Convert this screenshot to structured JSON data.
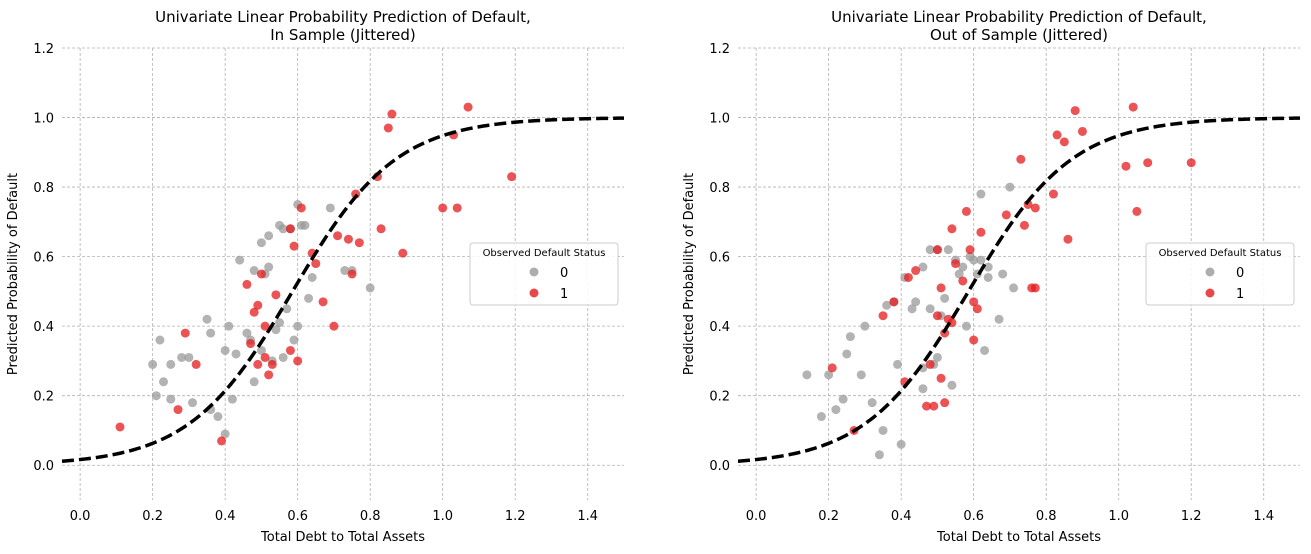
{
  "colors": {
    "class0": "#999999",
    "class1": "#e41a1c",
    "curve": "#000000"
  },
  "chart_data": [
    {
      "type": "scatter",
      "title": "Univariate Linear Probability Prediction of Default,\nIn Sample (Jittered)",
      "xlabel": "Total Debt to Total Assets",
      "ylabel": "Predicted Probability of Default",
      "xlim": [
        -0.05,
        1.5
      ],
      "ylim": [
        -0.1,
        1.2
      ],
      "xticks": [
        "0.0",
        "0.2",
        "0.4",
        "0.6",
        "0.8",
        "1.0",
        "1.2",
        "1.4"
      ],
      "yticks": [
        "0.0",
        "0.2",
        "0.4",
        "0.6",
        "0.8",
        "1.0",
        "1.2"
      ],
      "grid": true,
      "legend": {
        "title": "Observed Default Status",
        "position": "center-right",
        "entries": [
          "0",
          "1"
        ]
      },
      "curve": {
        "type": "logistic",
        "description": "dashed fitted probability curve"
      },
      "series": [
        {
          "name": "0",
          "points": [
            [
              0.2,
              0.29
            ],
            [
              0.21,
              0.2
            ],
            [
              0.22,
              0.36
            ],
            [
              0.23,
              0.24
            ],
            [
              0.25,
              0.29
            ],
            [
              0.25,
              0.19
            ],
            [
              0.28,
              0.31
            ],
            [
              0.3,
              0.31
            ],
            [
              0.31,
              0.18
            ],
            [
              0.35,
              0.42
            ],
            [
              0.36,
              0.38
            ],
            [
              0.36,
              0.16
            ],
            [
              0.38,
              0.14
            ],
            [
              0.4,
              0.33
            ],
            [
              0.41,
              0.4
            ],
            [
              0.4,
              0.09
            ],
            [
              0.42,
              0.19
            ],
            [
              0.43,
              0.32
            ],
            [
              0.44,
              0.59
            ],
            [
              0.46,
              0.38
            ],
            [
              0.47,
              0.36
            ],
            [
              0.48,
              0.24
            ],
            [
              0.48,
              0.56
            ],
            [
              0.5,
              0.33
            ],
            [
              0.5,
              0.64
            ],
            [
              0.51,
              0.55
            ],
            [
              0.52,
              0.57
            ],
            [
              0.52,
              0.66
            ],
            [
              0.53,
              0.3
            ],
            [
              0.54,
              0.39
            ],
            [
              0.55,
              0.41
            ],
            [
              0.55,
              0.69
            ],
            [
              0.56,
              0.31
            ],
            [
              0.56,
              0.68
            ],
            [
              0.57,
              0.45
            ],
            [
              0.58,
              0.68
            ],
            [
              0.59,
              0.36
            ],
            [
              0.6,
              0.4
            ],
            [
              0.6,
              0.75
            ],
            [
              0.61,
              0.69
            ],
            [
              0.62,
              0.69
            ],
            [
              0.63,
              0.48
            ],
            [
              0.64,
              0.54
            ],
            [
              0.69,
              0.74
            ],
            [
              0.73,
              0.56
            ],
            [
              0.75,
              0.56
            ],
            [
              0.8,
              0.51
            ]
          ]
        },
        {
          "name": "1",
          "points": [
            [
              0.11,
              0.11
            ],
            [
              0.27,
              0.16
            ],
            [
              0.29,
              0.38
            ],
            [
              0.32,
              0.29
            ],
            [
              0.39,
              0.07
            ],
            [
              0.46,
              0.52
            ],
            [
              0.47,
              0.35
            ],
            [
              0.48,
              0.44
            ],
            [
              0.49,
              0.29
            ],
            [
              0.49,
              0.46
            ],
            [
              0.5,
              0.55
            ],
            [
              0.51,
              0.4
            ],
            [
              0.51,
              0.31
            ],
            [
              0.52,
              0.26
            ],
            [
              0.53,
              0.29
            ],
            [
              0.54,
              0.49
            ],
            [
              0.58,
              0.68
            ],
            [
              0.58,
              0.33
            ],
            [
              0.59,
              0.63
            ],
            [
              0.6,
              0.3
            ],
            [
              0.61,
              0.74
            ],
            [
              0.64,
              0.61
            ],
            [
              0.65,
              0.58
            ],
            [
              0.67,
              0.47
            ],
            [
              0.7,
              0.4
            ],
            [
              0.71,
              0.66
            ],
            [
              0.74,
              0.65
            ],
            [
              0.75,
              0.55
            ],
            [
              0.76,
              0.78
            ],
            [
              0.77,
              0.64
            ],
            [
              0.82,
              0.83
            ],
            [
              0.83,
              0.68
            ],
            [
              0.85,
              0.97
            ],
            [
              0.86,
              1.01
            ],
            [
              0.89,
              0.61
            ],
            [
              1.0,
              0.74
            ],
            [
              1.03,
              0.95
            ],
            [
              1.04,
              0.74
            ],
            [
              1.07,
              1.03
            ],
            [
              1.19,
              0.83
            ]
          ]
        }
      ]
    },
    {
      "type": "scatter",
      "title": "Univariate Linear Probability Prediction of Default,\nOut of Sample (Jittered)",
      "xlabel": "Total Debt to Total Assets",
      "ylabel": "Predicted Probability of Default",
      "xlim": [
        -0.05,
        1.5
      ],
      "ylim": [
        -0.1,
        1.2
      ],
      "xticks": [
        "0.0",
        "0.2",
        "0.4",
        "0.6",
        "0.8",
        "1.0",
        "1.2",
        "1.4"
      ],
      "yticks": [
        "0.0",
        "0.2",
        "0.4",
        "0.6",
        "0.8",
        "1.0",
        "1.2"
      ],
      "grid": true,
      "legend": {
        "title": "Observed Default Status",
        "position": "center-right",
        "entries": [
          "0",
          "1"
        ]
      },
      "curve": {
        "type": "logistic",
        "description": "dashed fitted probability curve"
      },
      "series": [
        {
          "name": "0",
          "points": [
            [
              0.14,
              0.26
            ],
            [
              0.18,
              0.14
            ],
            [
              0.2,
              0.26
            ],
            [
              0.22,
              0.16
            ],
            [
              0.24,
              0.19
            ],
            [
              0.25,
              0.32
            ],
            [
              0.26,
              0.37
            ],
            [
              0.29,
              0.26
            ],
            [
              0.3,
              0.4
            ],
            [
              0.32,
              0.18
            ],
            [
              0.34,
              0.03
            ],
            [
              0.35,
              0.1
            ],
            [
              0.36,
              0.46
            ],
            [
              0.38,
              0.47
            ],
            [
              0.39,
              0.29
            ],
            [
              0.4,
              0.06
            ],
            [
              0.41,
              0.54
            ],
            [
              0.43,
              0.45
            ],
            [
              0.44,
              0.47
            ],
            [
              0.46,
              0.28
            ],
            [
              0.46,
              0.22
            ],
            [
              0.46,
              0.57
            ],
            [
              0.48,
              0.45
            ],
            [
              0.48,
              0.62
            ],
            [
              0.49,
              0.29
            ],
            [
              0.5,
              0.31
            ],
            [
              0.5,
              0.62
            ],
            [
              0.51,
              0.43
            ],
            [
              0.52,
              0.48
            ],
            [
              0.53,
              0.62
            ],
            [
              0.54,
              0.23
            ],
            [
              0.55,
              0.59
            ],
            [
              0.56,
              0.55
            ],
            [
              0.57,
              0.57
            ],
            [
              0.58,
              0.4
            ],
            [
              0.59,
              0.6
            ],
            [
              0.6,
              0.59
            ],
            [
              0.61,
              0.55
            ],
            [
              0.62,
              0.78
            ],
            [
              0.62,
              0.59
            ],
            [
              0.63,
              0.33
            ],
            [
              0.64,
              0.57
            ],
            [
              0.64,
              0.54
            ],
            [
              0.67,
              0.42
            ],
            [
              0.68,
              0.55
            ],
            [
              0.7,
              0.8
            ],
            [
              0.71,
              0.51
            ]
          ]
        },
        {
          "name": "1",
          "points": [
            [
              0.21,
              0.28
            ],
            [
              0.27,
              0.1
            ],
            [
              0.35,
              0.43
            ],
            [
              0.38,
              0.47
            ],
            [
              0.41,
              0.24
            ],
            [
              0.42,
              0.54
            ],
            [
              0.44,
              0.56
            ],
            [
              0.47,
              0.17
            ],
            [
              0.48,
              0.29
            ],
            [
              0.49,
              0.17
            ],
            [
              0.5,
              0.43
            ],
            [
              0.5,
              0.62
            ],
            [
              0.51,
              0.25
            ],
            [
              0.51,
              0.51
            ],
            [
              0.52,
              0.38
            ],
            [
              0.52,
              0.18
            ],
            [
              0.53,
              0.42
            ],
            [
              0.54,
              0.68
            ],
            [
              0.54,
              0.41
            ],
            [
              0.55,
              0.58
            ],
            [
              0.57,
              0.53
            ],
            [
              0.58,
              0.73
            ],
            [
              0.59,
              0.62
            ],
            [
              0.6,
              0.36
            ],
            [
              0.6,
              0.47
            ],
            [
              0.61,
              0.45
            ],
            [
              0.62,
              0.67
            ],
            [
              0.69,
              0.72
            ],
            [
              0.73,
              0.88
            ],
            [
              0.74,
              0.69
            ],
            [
              0.75,
              0.75
            ],
            [
              0.76,
              0.51
            ],
            [
              0.77,
              0.51
            ],
            [
              0.77,
              0.74
            ],
            [
              0.82,
              0.78
            ],
            [
              0.83,
              0.95
            ],
            [
              0.85,
              0.93
            ],
            [
              0.86,
              0.65
            ],
            [
              0.88,
              1.02
            ],
            [
              0.9,
              0.96
            ],
            [
              1.02,
              0.86
            ],
            [
              1.04,
              1.03
            ],
            [
              1.05,
              0.73
            ],
            [
              1.08,
              0.87
            ],
            [
              1.2,
              0.87
            ]
          ]
        }
      ]
    }
  ]
}
